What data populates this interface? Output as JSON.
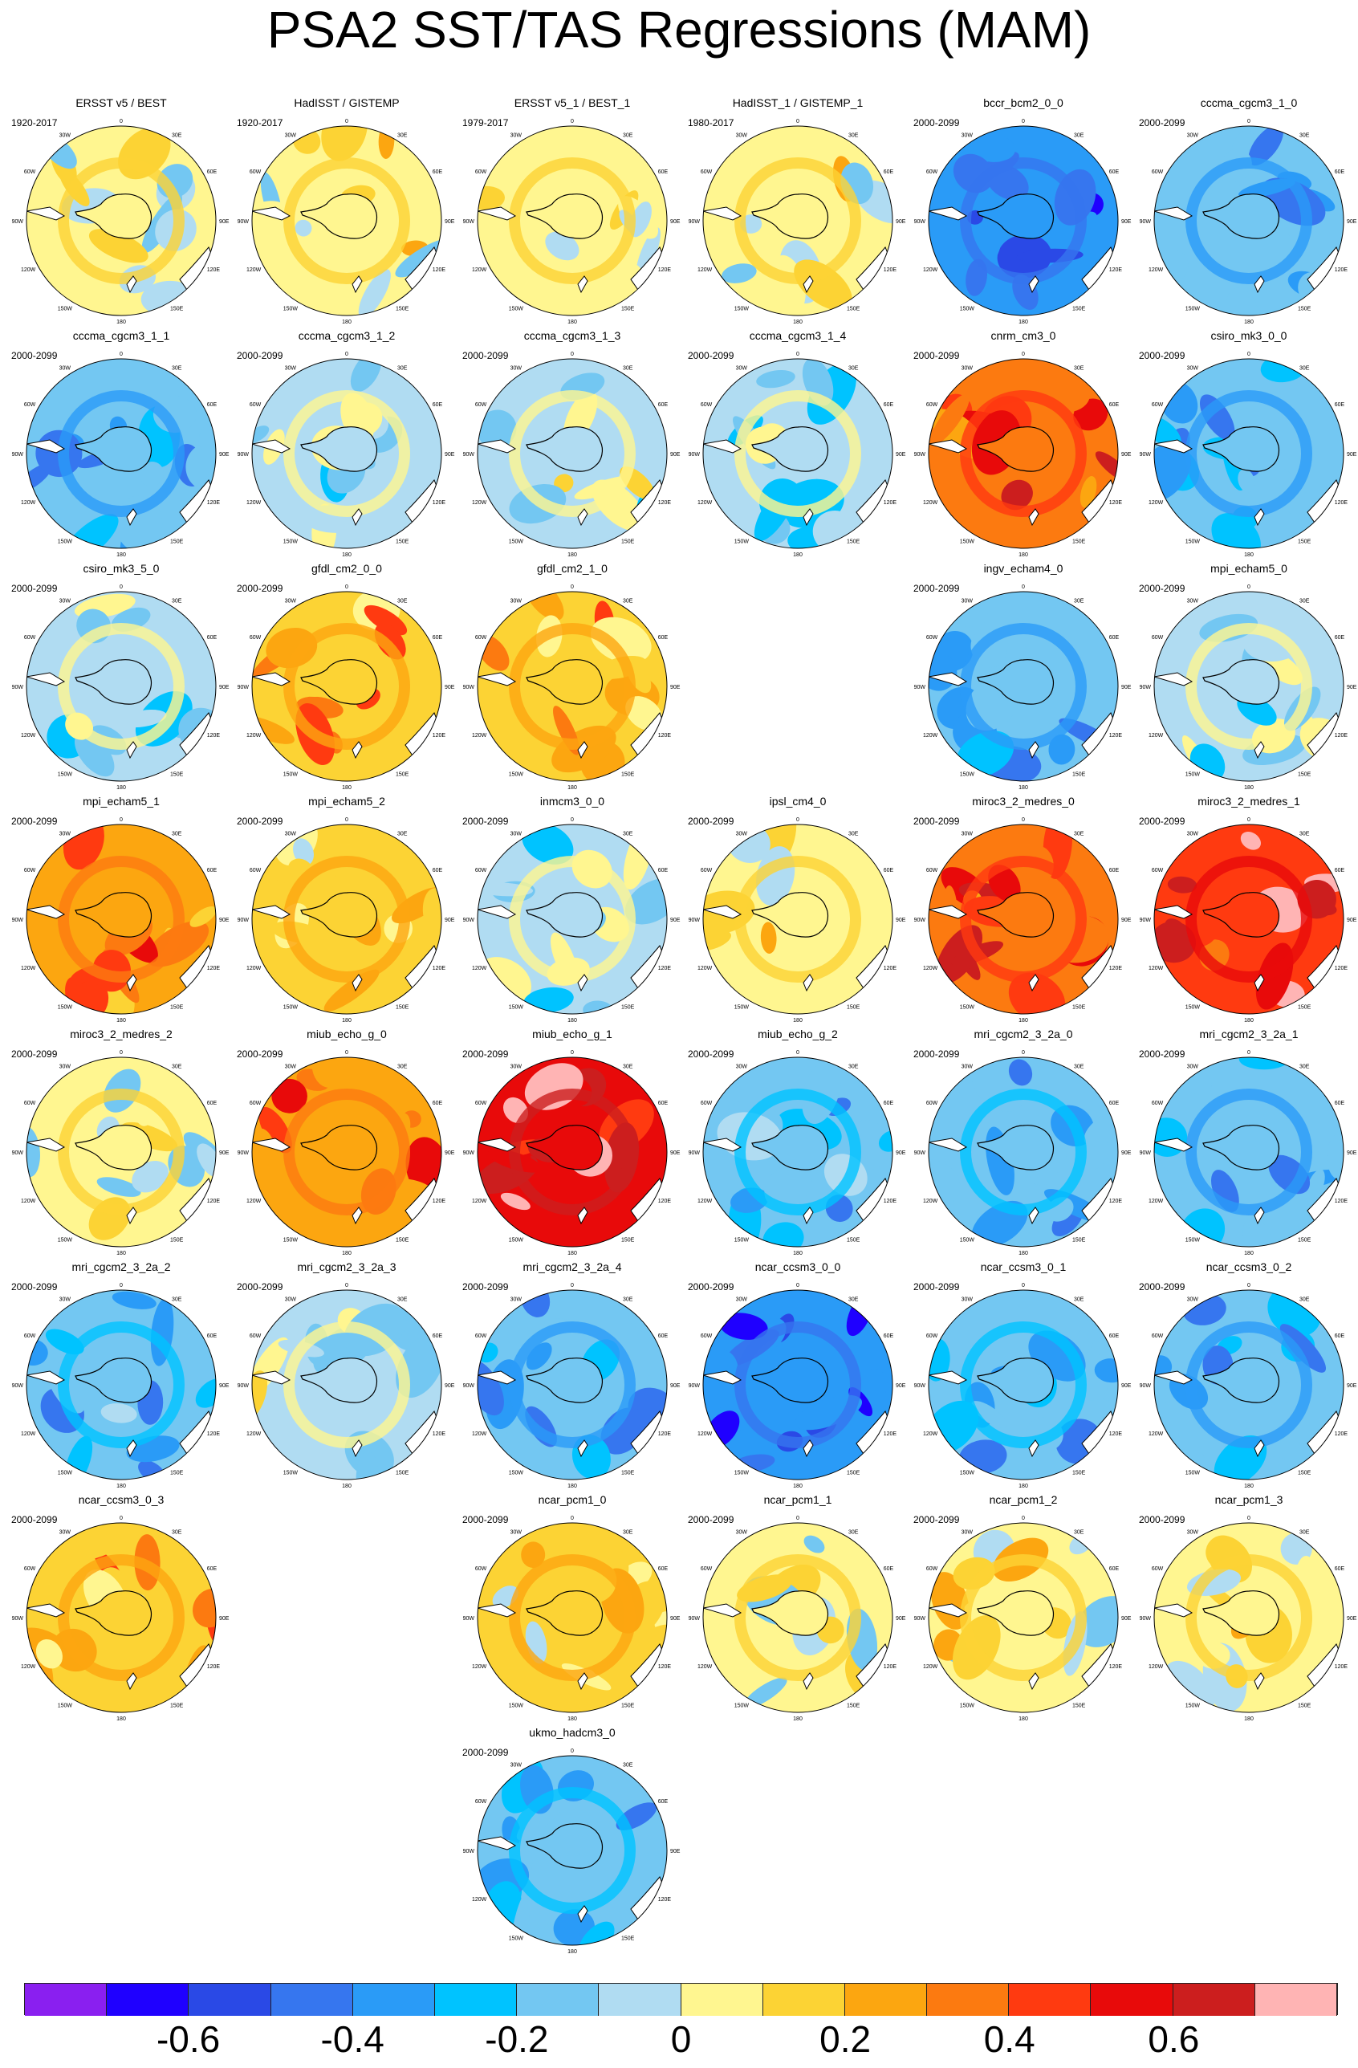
{
  "title": "PSA2 SST/TAS Regressions (MAM)",
  "map_labels": {
    "top": "0",
    "upper_left": "30W",
    "upper_right": "30E",
    "left_upper": "60W",
    "right_upper": "60E",
    "left": "90W",
    "right": "90E",
    "left_lower": "120W",
    "right_lower": "120E",
    "lower_left": "150W",
    "lower_right": "150E",
    "bottom": "180"
  },
  "panels": [
    {
      "title": "ERSST v5 / BEST",
      "period": "1920-2017",
      "row": 0,
      "col": 0,
      "level": 0.02,
      "pattern": "obs"
    },
    {
      "title": "HadISST / GISTEMP",
      "period": "1920-2017",
      "row": 0,
      "col": 1,
      "level": 0.05,
      "pattern": "obs"
    },
    {
      "title": "ERSST v5_1 / BEST_1",
      "period": "1979-2017",
      "row": 0,
      "col": 2,
      "level": 0.04,
      "pattern": "obs"
    },
    {
      "title": "HadISST_1 / GISTEMP_1",
      "period": "1980-2017",
      "row": 0,
      "col": 3,
      "level": 0.05,
      "pattern": "obs"
    },
    {
      "title": "bccr_bcm2_0_0",
      "period": "2000-2099",
      "row": 0,
      "col": 4,
      "level": -0.4,
      "pattern": "cold"
    },
    {
      "title": "cccma_cgcm3_1_0",
      "period": "2000-2099",
      "row": 0,
      "col": 5,
      "level": -0.2,
      "pattern": "cold"
    },
    {
      "title": "cccma_cgcm3_1_1",
      "period": "2000-2099",
      "row": 1,
      "col": 0,
      "level": -0.2,
      "pattern": "cold"
    },
    {
      "title": "cccma_cgcm3_1_2",
      "period": "2000-2099",
      "row": 1,
      "col": 1,
      "level": -0.05,
      "pattern": "mixed"
    },
    {
      "title": "cccma_cgcm3_1_3",
      "period": "2000-2099",
      "row": 1,
      "col": 2,
      "level": -0.05,
      "pattern": "mixed"
    },
    {
      "title": "cccma_cgcm3_1_4",
      "period": "2000-2099",
      "row": 1,
      "col": 3,
      "level": -0.1,
      "pattern": "mixed"
    },
    {
      "title": "cnrm_cm3_0",
      "period": "2000-2099",
      "row": 1,
      "col": 4,
      "level": 0.3,
      "pattern": "warm"
    },
    {
      "title": "csiro_mk3_0_0",
      "period": "2000-2099",
      "row": 1,
      "col": 5,
      "level": -0.2,
      "pattern": "cold"
    },
    {
      "title": "csiro_mk3_5_0",
      "period": "2000-2099",
      "row": 2,
      "col": 0,
      "level": -0.1,
      "pattern": "mixed"
    },
    {
      "title": "gfdl_cm2_0_0",
      "period": "2000-2099",
      "row": 2,
      "col": 1,
      "level": 0.15,
      "pattern": "warm"
    },
    {
      "title": "gfdl_cm2_1_0",
      "period": "",
      "row": 2,
      "col": 2,
      "level": 0.1,
      "pattern": "warm"
    },
    {
      "title": "ingv_echam4_0",
      "period": "2000-2099",
      "row": 2,
      "col": 4,
      "level": -0.2,
      "pattern": "cold"
    },
    {
      "title": "mpi_echam5_0",
      "period": "2000-2099",
      "row": 2,
      "col": 5,
      "level": -0.1,
      "pattern": "mixed"
    },
    {
      "title": "mpi_echam5_1",
      "period": "2000-2099",
      "row": 3,
      "col": 0,
      "level": 0.2,
      "pattern": "warm"
    },
    {
      "title": "mpi_echam5_2",
      "period": "2000-2099",
      "row": 3,
      "col": 1,
      "level": 0.1,
      "pattern": "mixed"
    },
    {
      "title": "inmcm3_0_0",
      "period": "2000-2099",
      "row": 3,
      "col": 2,
      "level": -0.1,
      "pattern": "mixed"
    },
    {
      "title": "ipsl_cm4_0",
      "period": "2000-2099",
      "row": 3,
      "col": 3,
      "level": 0.05,
      "pattern": "mixed"
    },
    {
      "title": "miroc3_2_medres_0",
      "period": "2000-2099",
      "row": 3,
      "col": 4,
      "level": 0.35,
      "pattern": "warm"
    },
    {
      "title": "miroc3_2_medres_1",
      "period": "2000-2099",
      "row": 3,
      "col": 5,
      "level": 0.45,
      "pattern": "warm"
    },
    {
      "title": "miroc3_2_medres_2",
      "period": "2000-2099",
      "row": 4,
      "col": 0,
      "level": 0.0,
      "pattern": "mixed"
    },
    {
      "title": "miub_echo_g_0",
      "period": "2000-2099",
      "row": 4,
      "col": 1,
      "level": 0.25,
      "pattern": "warm"
    },
    {
      "title": "miub_echo_g_1",
      "period": "2000-2099",
      "row": 4,
      "col": 2,
      "level": 0.5,
      "pattern": "warm"
    },
    {
      "title": "miub_echo_g_2",
      "period": "2000-2099",
      "row": 4,
      "col": 3,
      "level": -0.15,
      "pattern": "cold"
    },
    {
      "title": "mri_cgcm2_3_2a_0",
      "period": "2000-2099",
      "row": 4,
      "col": 4,
      "level": -0.15,
      "pattern": "cold"
    },
    {
      "title": "mri_cgcm2_3_2a_1",
      "period": "2000-2099",
      "row": 4,
      "col": 5,
      "level": -0.2,
      "pattern": "cold"
    },
    {
      "title": "mri_cgcm2_3_2a_2",
      "period": "2000-2099",
      "row": 5,
      "col": 0,
      "level": -0.15,
      "pattern": "cold"
    },
    {
      "title": "mri_cgcm2_3_2a_3",
      "period": "2000-2099",
      "row": 5,
      "col": 1,
      "level": -0.05,
      "pattern": "mixed"
    },
    {
      "title": "mri_cgcm2_3_2a_4",
      "period": "2000-2099",
      "row": 5,
      "col": 2,
      "level": -0.2,
      "pattern": "cold"
    },
    {
      "title": "ncar_ccsm3_0_0",
      "period": "2000-2099",
      "row": 5,
      "col": 3,
      "level": -0.4,
      "pattern": "cold"
    },
    {
      "title": "ncar_ccsm3_0_1",
      "period": "2000-2099",
      "row": 5,
      "col": 4,
      "level": -0.15,
      "pattern": "cold"
    },
    {
      "title": "ncar_ccsm3_0_2",
      "period": "2000-2099",
      "row": 5,
      "col": 5,
      "level": -0.2,
      "pattern": "cold"
    },
    {
      "title": "ncar_ccsm3_0_3",
      "period": "2000-2099",
      "row": 6,
      "col": 0,
      "level": 0.12,
      "pattern": "warm"
    },
    {
      "title": "ncar_pcm1_0",
      "period": "2000-2099",
      "row": 6,
      "col": 2,
      "level": 0.1,
      "pattern": "mixed"
    },
    {
      "title": "ncar_pcm1_1",
      "period": "2000-2099",
      "row": 6,
      "col": 3,
      "level": 0.0,
      "pattern": "mixed"
    },
    {
      "title": "ncar_pcm1_2",
      "period": "2000-2099",
      "row": 6,
      "col": 4,
      "level": 0.05,
      "pattern": "mixed"
    },
    {
      "title": "ncar_pcm1_3",
      "period": "2000-2099",
      "row": 6,
      "col": 5,
      "level": 0.05,
      "pattern": "mixed"
    },
    {
      "title": "ukmo_hadcm3_0",
      "period": "2000-2099",
      "row": 7,
      "col": 2,
      "level": -0.15,
      "pattern": "cold"
    }
  ],
  "colorbar": {
    "colors": [
      "#8a1ff0",
      "#1f00ff",
      "#2a49e6",
      "#3676ef",
      "#2a9bf7",
      "#00c3ff",
      "#73c7f2",
      "#b0dcf2",
      "#fff690",
      "#fcd334",
      "#fca610",
      "#fc7a10",
      "#ff3a10",
      "#e80a0a",
      "#cc1e1e",
      "#ffb4b4"
    ],
    "bounds": [
      -0.7,
      -0.6,
      -0.5,
      -0.4,
      -0.3,
      -0.2,
      -0.1,
      0,
      0.1,
      0.2,
      0.3,
      0.4,
      0.5,
      0.6,
      0.7
    ],
    "labels": [
      "-0.6",
      "-0.4",
      "-0.2",
      "0",
      "0.2",
      "0.4",
      "0.6"
    ],
    "label_values": [
      -0.6,
      -0.4,
      -0.2,
      0,
      0.2,
      0.4,
      0.6
    ]
  }
}
